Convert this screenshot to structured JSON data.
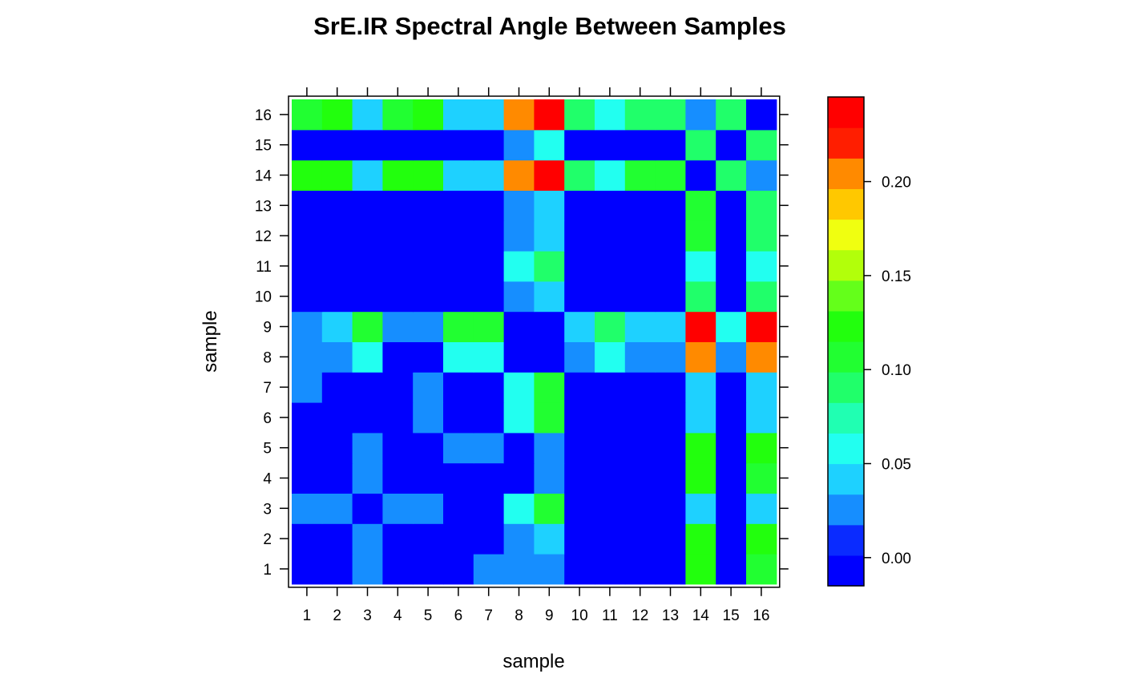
{
  "chart_data": {
    "type": "heatmap",
    "title": "SrE.IR Spectral Angle Between Samples",
    "xlabel": "sample",
    "ylabel": "sample",
    "x_categories": [
      "1",
      "2",
      "3",
      "4",
      "5",
      "6",
      "7",
      "8",
      "9",
      "10",
      "11",
      "12",
      "13",
      "14",
      "15",
      "16"
    ],
    "y_categories": [
      "1",
      "2",
      "3",
      "4",
      "5",
      "6",
      "7",
      "8",
      "9",
      "10",
      "11",
      "12",
      "13",
      "14",
      "15",
      "16"
    ],
    "colorbar": {
      "ticks": [
        "0.00",
        "0.05",
        "0.10",
        "0.15",
        "0.20"
      ],
      "tick_values": [
        0.0,
        0.05,
        0.1,
        0.15,
        0.2
      ],
      "range": [
        -0.015,
        0.245
      ],
      "colors": [
        "#0000FF",
        "#0A2BFF",
        "#168EFF",
        "#1ED1FF",
        "#22FFF0",
        "#20FFB2",
        "#20FF6A",
        "#21FF31",
        "#22FF0D",
        "#64FF1A",
        "#B2FF0A",
        "#F0FF10",
        "#FFC800",
        "#FF8A00",
        "#FF1E00",
        "#FF0000"
      ]
    },
    "z_rows_bottom_to_top": [
      [
        -0.011,
        0.0,
        0.026,
        0.0,
        0.0,
        0.0,
        0.026,
        0.026,
        0.026,
        0.0,
        0.0,
        0.0,
        0.0,
        0.115,
        0.0,
        0.106
      ],
      [
        0.0,
        -0.011,
        0.026,
        0.0,
        0.0,
        0.0,
        0.0,
        0.026,
        0.045,
        0.0,
        0.0,
        0.0,
        0.0,
        0.115,
        0.0,
        0.115
      ],
      [
        0.026,
        0.026,
        -0.011,
        0.026,
        0.026,
        0.0,
        0.0,
        0.065,
        0.106,
        0.0,
        0.0,
        0.0,
        0.0,
        0.045,
        0.0,
        0.045
      ],
      [
        0.0,
        0.0,
        0.026,
        -0.011,
        0.0,
        0.0,
        0.0,
        0.0,
        0.026,
        0.0,
        0.0,
        0.0,
        0.0,
        0.115,
        0.0,
        0.106
      ],
      [
        0.0,
        0.0,
        0.026,
        0.0,
        -0.011,
        0.026,
        0.026,
        0.0,
        0.026,
        0.0,
        0.0,
        0.0,
        0.0,
        0.115,
        0.0,
        0.115
      ],
      [
        0.0,
        0.0,
        0.0,
        0.0,
        0.026,
        -0.011,
        0.0,
        0.065,
        0.106,
        0.0,
        0.0,
        0.0,
        0.0,
        0.045,
        0.0,
        0.045
      ],
      [
        0.026,
        0.0,
        0.0,
        0.0,
        0.026,
        0.0,
        -0.011,
        0.065,
        0.106,
        0.0,
        0.0,
        0.0,
        0.0,
        0.045,
        0.0,
        0.045
      ],
      [
        0.026,
        0.026,
        0.065,
        0.0,
        0.0,
        0.065,
        0.065,
        -0.011,
        0.0,
        0.026,
        0.065,
        0.026,
        0.026,
        0.205,
        0.026,
        0.205
      ],
      [
        0.026,
        0.045,
        0.106,
        0.026,
        0.026,
        0.106,
        0.106,
        0.0,
        -0.011,
        0.045,
        0.085,
        0.045,
        0.045,
        0.24,
        0.065,
        0.23
      ],
      [
        0.0,
        0.0,
        0.0,
        0.0,
        0.0,
        0.0,
        0.0,
        0.026,
        0.045,
        -0.011,
        0.0,
        0.0,
        0.0,
        0.085,
        0.0,
        0.085
      ],
      [
        0.0,
        0.0,
        0.0,
        0.0,
        0.0,
        0.0,
        0.0,
        0.065,
        0.085,
        0.0,
        -0.011,
        0.0,
        0.0,
        0.065,
        0.0,
        0.065
      ],
      [
        0.0,
        0.0,
        0.0,
        0.0,
        0.0,
        0.0,
        0.0,
        0.026,
        0.045,
        0.0,
        0.0,
        -0.011,
        0.0,
        0.106,
        0.0,
        0.085
      ],
      [
        0.0,
        0.0,
        0.0,
        0.0,
        0.0,
        0.0,
        0.0,
        0.026,
        0.045,
        0.0,
        0.0,
        0.0,
        -0.011,
        0.106,
        0.0,
        0.085
      ],
      [
        0.115,
        0.115,
        0.045,
        0.115,
        0.115,
        0.045,
        0.045,
        0.205,
        0.24,
        0.085,
        0.065,
        0.106,
        0.106,
        -0.011,
        0.085,
        0.026
      ],
      [
        0.0,
        0.0,
        0.0,
        0.0,
        0.0,
        0.0,
        0.0,
        0.026,
        0.065,
        0.0,
        0.0,
        0.0,
        0.0,
        0.085,
        -0.011,
        0.085
      ],
      [
        0.106,
        0.115,
        0.045,
        0.106,
        0.115,
        0.045,
        0.045,
        0.205,
        0.23,
        0.085,
        0.065,
        0.085,
        0.085,
        0.026,
        0.085,
        -0.011
      ]
    ]
  }
}
